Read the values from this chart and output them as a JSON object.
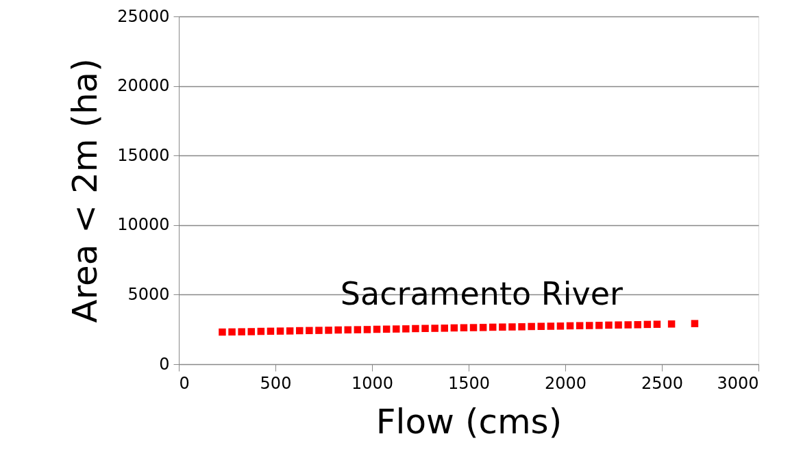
{
  "chart_data": {
    "type": "scatter",
    "xlabel": "Flow (cms)",
    "ylabel": "Area < 2m (ha)",
    "x": [
      225,
      275,
      325,
      375,
      425,
      475,
      525,
      575,
      625,
      675,
      725,
      775,
      825,
      875,
      925,
      975,
      1025,
      1075,
      1125,
      1175,
      1225,
      1275,
      1325,
      1375,
      1425,
      1475,
      1525,
      1575,
      1625,
      1675,
      1725,
      1775,
      1825,
      1875,
      1925,
      1975,
      2025,
      2075,
      2125,
      2175,
      2225,
      2275,
      2325,
      2375,
      2425,
      2475,
      2550,
      2670
    ],
    "series": [
      {
        "name": "Sacramento River",
        "color": "#ff0000",
        "values": [
          2310,
          2320,
          2330,
          2340,
          2360,
          2370,
          2380,
          2390,
          2410,
          2420,
          2430,
          2440,
          2460,
          2470,
          2480,
          2490,
          2510,
          2520,
          2530,
          2540,
          2560,
          2570,
          2580,
          2590,
          2610,
          2620,
          2630,
          2640,
          2660,
          2670,
          2680,
          2690,
          2710,
          2720,
          2730,
          2740,
          2760,
          2770,
          2780,
          2790,
          2810,
          2820,
          2830,
          2840,
          2860,
          2870,
          2890,
          2920
        ]
      }
    ],
    "xlim": [
      0,
      3000
    ],
    "xticks": [
      0,
      500,
      1000,
      1500,
      2000,
      2500,
      3000
    ],
    "ylim": [
      0,
      25000
    ],
    "yticks": [
      0,
      5000,
      10000,
      15000,
      20000,
      25000
    ],
    "grid": "y",
    "marker": "square"
  }
}
